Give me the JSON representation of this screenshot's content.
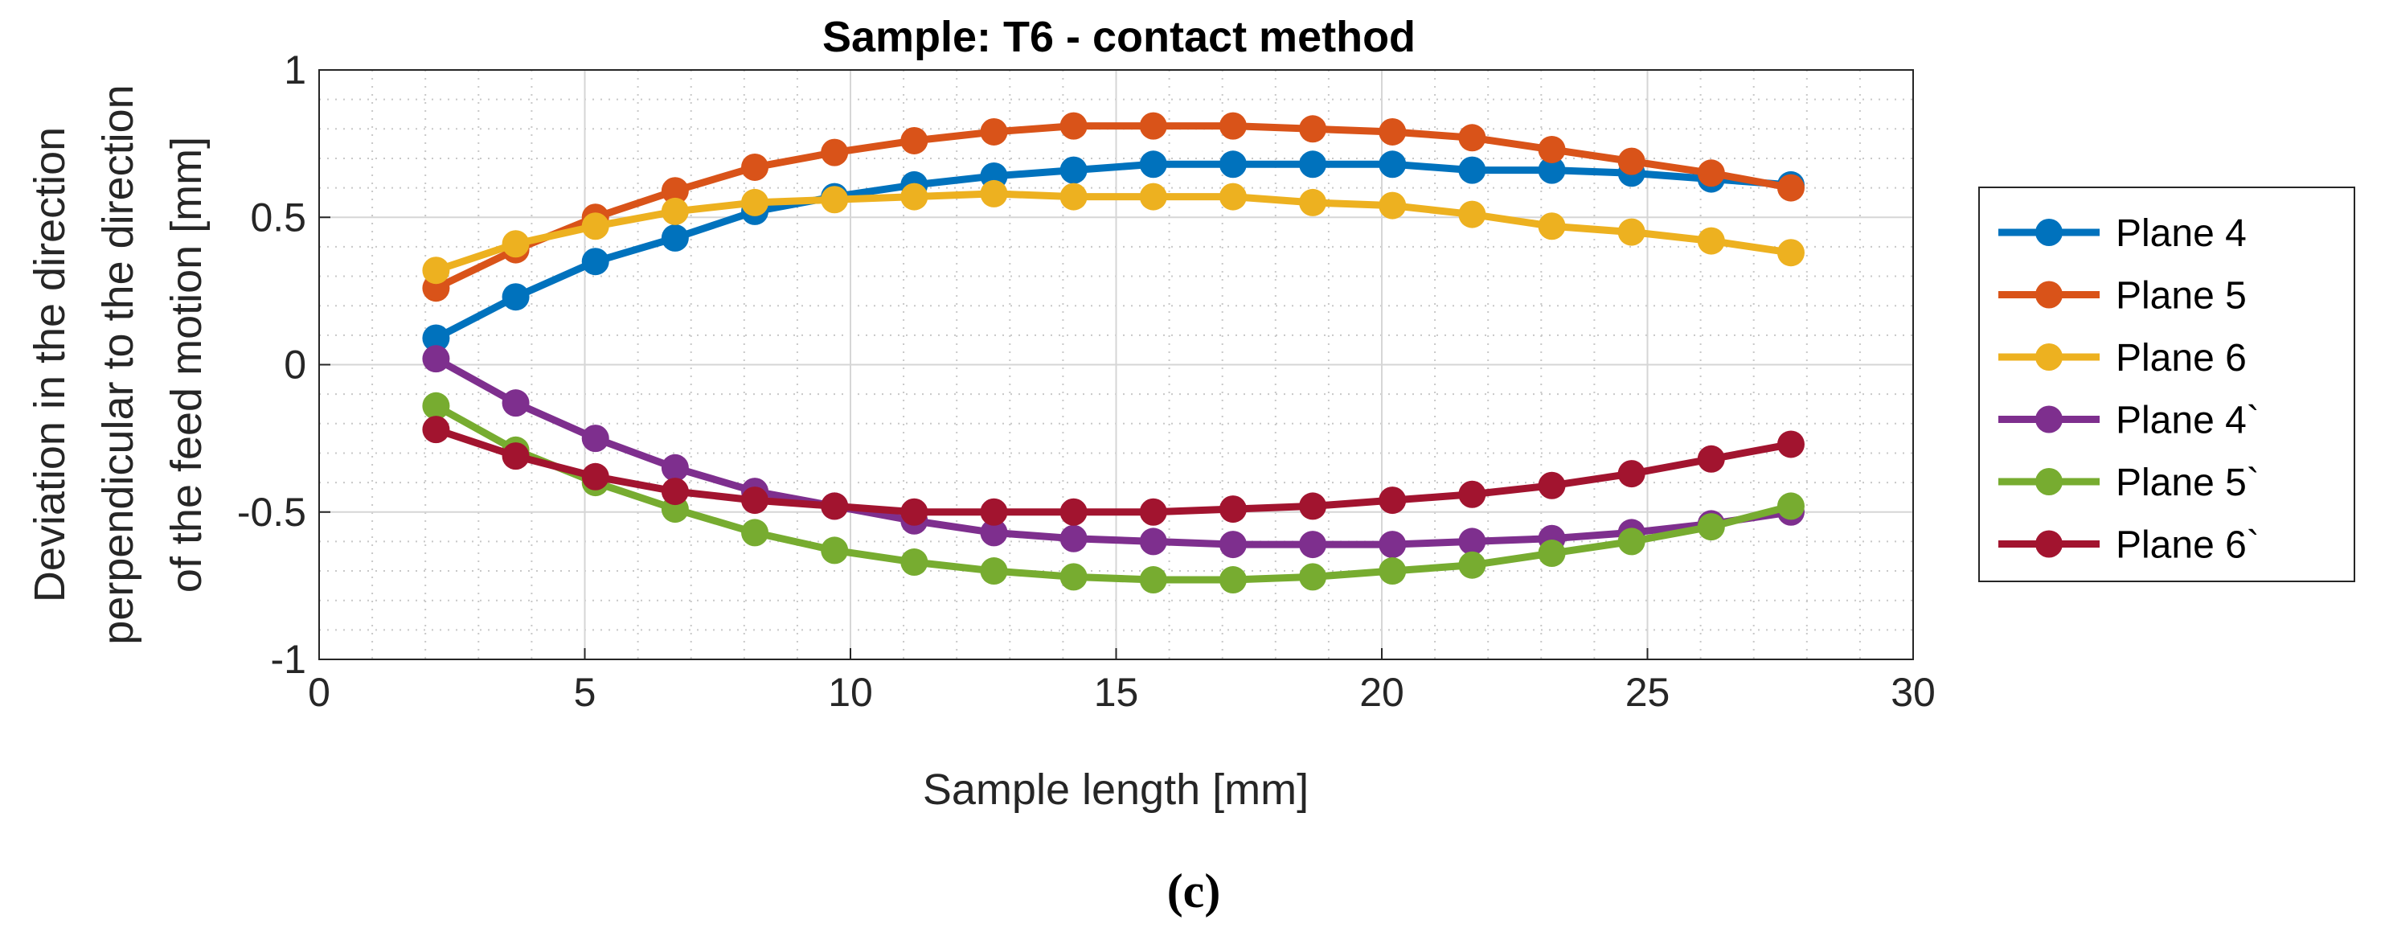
{
  "chart_data": {
    "type": "line",
    "title": "Sample: T6 - contact method",
    "xlabel": "Sample length [mm]",
    "ylabel": [
      "Deviation in the direction",
      "perpendicular to the direction",
      "of the feed motion [mm]"
    ],
    "xlim": [
      0,
      30
    ],
    "ylim": [
      -1,
      1
    ],
    "x_ticks": [
      0,
      5,
      10,
      15,
      20,
      25,
      30
    ],
    "y_ticks": [
      -1,
      -0.5,
      0,
      0.5,
      1
    ],
    "x_tick_labels": [
      "0",
      "5",
      "10",
      "15",
      "20",
      "25",
      "30"
    ],
    "y_tick_labels": [
      "-1",
      "-0.5",
      "0",
      "0.5",
      "1"
    ],
    "grid": true,
    "minor_grid": true,
    "legend_position": "outside-right",
    "caption": "(c)",
    "x": [
      2.2,
      3.7,
      5.2,
      6.7,
      8.2,
      9.7,
      11.2,
      12.7,
      14.2,
      15.7,
      17.2,
      18.7,
      20.2,
      21.7,
      23.2,
      24.7,
      26.2,
      27.7
    ],
    "series": [
      {
        "name": "Plane 4",
        "color": "#0072BD",
        "values": [
          0.09,
          0.23,
          0.35,
          0.43,
          0.52,
          0.57,
          0.61,
          0.64,
          0.66,
          0.68,
          0.68,
          0.68,
          0.68,
          0.66,
          0.66,
          0.65,
          0.63,
          0.61
        ]
      },
      {
        "name": "Plane 5",
        "color": "#D95319",
        "values": [
          0.26,
          0.39,
          0.5,
          0.59,
          0.67,
          0.72,
          0.76,
          0.79,
          0.81,
          0.81,
          0.81,
          0.8,
          0.79,
          0.77,
          0.73,
          0.69,
          0.65,
          0.6
        ]
      },
      {
        "name": "Plane 6",
        "color": "#EDB120",
        "values": [
          0.32,
          0.41,
          0.47,
          0.52,
          0.55,
          0.56,
          0.57,
          0.58,
          0.57,
          0.57,
          0.57,
          0.55,
          0.54,
          0.51,
          0.47,
          0.45,
          0.42,
          0.38
        ]
      },
      {
        "name": "Plane 4`",
        "color": "#7E2F8E",
        "values": [
          0.02,
          -0.13,
          -0.25,
          -0.35,
          -0.43,
          -0.48,
          -0.53,
          -0.57,
          -0.59,
          -0.6,
          -0.61,
          -0.61,
          -0.61,
          -0.6,
          -0.59,
          -0.57,
          -0.54,
          -0.5
        ]
      },
      {
        "name": "Plane 5`",
        "color": "#77AC30",
        "values": [
          -0.14,
          -0.29,
          -0.4,
          -0.49,
          -0.57,
          -0.63,
          -0.67,
          -0.7,
          -0.72,
          -0.73,
          -0.73,
          -0.72,
          -0.7,
          -0.68,
          -0.64,
          -0.6,
          -0.55,
          -0.48
        ]
      },
      {
        "name": "Plane 6`",
        "color": "#A2142F",
        "values": [
          -0.22,
          -0.31,
          -0.38,
          -0.43,
          -0.46,
          -0.48,
          -0.5,
          -0.5,
          -0.5,
          -0.5,
          -0.49,
          -0.48,
          -0.46,
          -0.44,
          -0.41,
          -0.37,
          -0.32,
          -0.27
        ]
      }
    ]
  }
}
